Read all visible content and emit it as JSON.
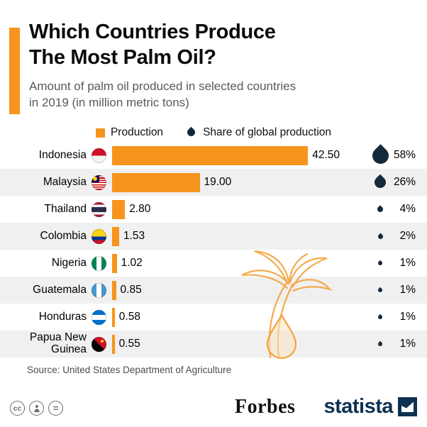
{
  "header": {
    "title_line1": "Which Countries Produce",
    "title_line2": "The Most Palm Oil?",
    "subtitle_line1": "Amount of palm oil produced in selected countries",
    "subtitle_line2": "in 2019 (in million metric tons)"
  },
  "legend": {
    "production": "Production",
    "share": "Share of global production"
  },
  "chart_data": {
    "type": "bar",
    "title": "Which Countries Produce The Most Palm Oil?",
    "subtitle": "Amount of palm oil produced in selected countries in 2019 (in million metric tons)",
    "unit": "million metric tons",
    "xlim": [
      0,
      45
    ],
    "orientation": "horizontal",
    "categories": [
      "Indonesia",
      "Malaysia",
      "Thailand",
      "Colombia",
      "Nigeria",
      "Guatemala",
      "Honduras",
      "Papua New Guinea"
    ],
    "series": [
      {
        "name": "Production (million metric tons)",
        "values": [
          42.5,
          19.0,
          2.8,
          1.53,
          1.02,
          0.85,
          0.58,
          0.55
        ]
      },
      {
        "name": "Share of global production (%)",
        "values": [
          58,
          26,
          4,
          2,
          1,
          1,
          1,
          1
        ]
      }
    ],
    "rows": [
      {
        "country": "Indonesia",
        "value": "42.50",
        "value_num": 42.5,
        "share": "58%",
        "share_num": 58
      },
      {
        "country": "Malaysia",
        "value": "19.00",
        "value_num": 19.0,
        "share": "26%",
        "share_num": 26
      },
      {
        "country": "Thailand",
        "value": "2.80",
        "value_num": 2.8,
        "share": "4%",
        "share_num": 4
      },
      {
        "country": "Colombia",
        "value": "1.53",
        "value_num": 1.53,
        "share": "2%",
        "share_num": 2
      },
      {
        "country": "Nigeria",
        "value": "1.02",
        "value_num": 1.02,
        "share": "1%",
        "share_num": 1
      },
      {
        "country": "Guatemala",
        "value": "0.85",
        "value_num": 0.85,
        "share": "1%",
        "share_num": 1
      },
      {
        "country": "Honduras",
        "value": "0.58",
        "value_num": 0.58,
        "share": "1%",
        "share_num": 1
      },
      {
        "country": "Papua New Guinea",
        "value": "0.55",
        "value_num": 0.55,
        "share": "1%",
        "share_num": 1
      }
    ]
  },
  "footer": {
    "source": "Source: United States Department of Agriculture",
    "forbes": "Forbes",
    "statista": "statista",
    "cc_symbol": "cc",
    "nd_symbol": "="
  },
  "colors": {
    "accent_orange": "#F6941E",
    "droplet_navy": "#14293A",
    "statista_navy": "#0F3150",
    "row_alt": "#F0F0F0",
    "subtitle_gray": "#58595B",
    "source_gray": "#4D4D4D"
  }
}
